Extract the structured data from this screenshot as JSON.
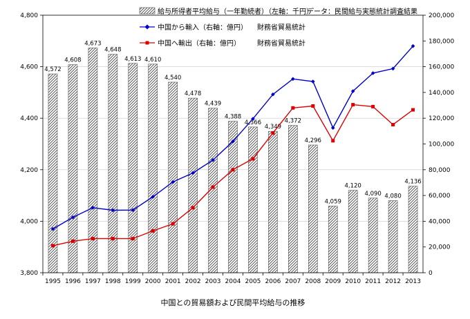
{
  "chart_data": {
    "type": "bar+line",
    "caption": "中国との貿易額および民間平均給与の推移",
    "categories": [
      "1995",
      "1996",
      "1997",
      "1998",
      "1999",
      "2000",
      "2001",
      "2002",
      "2003",
      "2004",
      "2005",
      "2006",
      "2007",
      "2008",
      "2009",
      "2010",
      "2011",
      "2012",
      "2013"
    ],
    "left_axis": {
      "min": 3800,
      "max": 4800,
      "step": 200,
      "tick_labels": [
        "3,800",
        "4,000",
        "4,200",
        "4,400",
        "4,600",
        "4,800"
      ]
    },
    "right_axis": {
      "min": 0,
      "max": 200000,
      "step": 20000,
      "tick_labels": [
        "0",
        "20,000",
        "40,000",
        "60,000",
        "80,000",
        "100,000",
        "120,000",
        "140,000",
        "160,000",
        "180,000",
        "200,000"
      ]
    },
    "bar_series": {
      "name": "給与所得者平均給与（一年勤続者）（左軸：千円）",
      "source": "データ：民間給与実態統計調査結果",
      "values": [
        4572,
        4608,
        4673,
        4648,
        4613,
        4610,
        4540,
        4478,
        4439,
        4388,
        4366,
        4349,
        4372,
        4296,
        4059,
        4120,
        4090,
        4080,
        4136
      ],
      "value_labels": [
        "4,572",
        "4,608",
        "4,673",
        "4,648",
        "4,613",
        "4,610",
        "4,540",
        "4,478",
        "4,439",
        "4,388",
        "4,366",
        "4,349",
        "4,372",
        "4,296",
        "4,059",
        "4,120",
        "4,090",
        "4,080",
        "4,136"
      ]
    },
    "line_series": [
      {
        "name": "中国から輸入（右軸：億円）",
        "source": "財務省貿易統計",
        "color": "#0000cc",
        "marker": "diamond",
        "values": [
          34000,
          43000,
          50500,
          48500,
          48700,
          59000,
          70500,
          77500,
          87500,
          102000,
          119500,
          138500,
          150500,
          148500,
          112500,
          141000,
          155000,
          158500,
          176000
        ]
      },
      {
        "name": "中国へ輸出（右軸：億円）",
        "source": "財務省貿易統計",
        "color": "#dd0000",
        "marker": "square",
        "values": [
          21000,
          24500,
          26500,
          26500,
          26500,
          32500,
          38000,
          50500,
          66500,
          80000,
          88500,
          108500,
          128000,
          129500,
          102500,
          130500,
          129000,
          115000,
          126500
        ]
      }
    ]
  }
}
